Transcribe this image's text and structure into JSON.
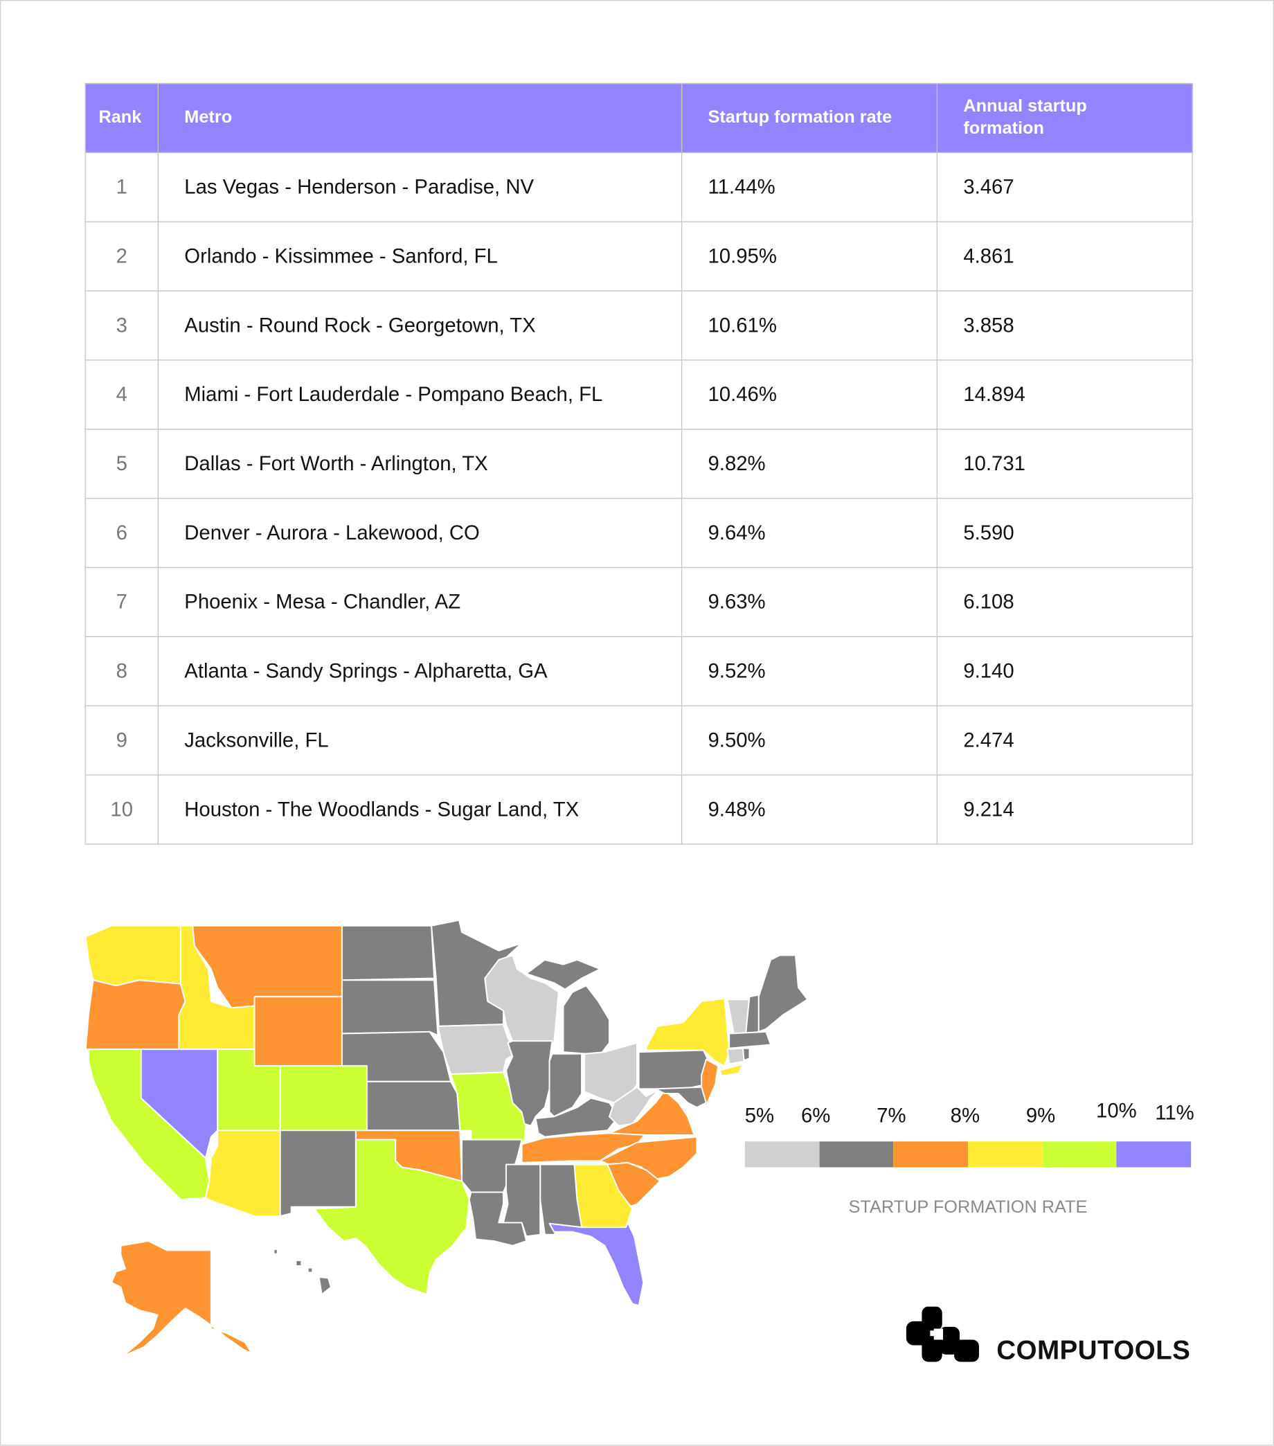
{
  "table": {
    "headers": [
      "Rank",
      "Metro",
      "Startup formation rate",
      "Annual startup formation"
    ],
    "rows": [
      {
        "rank": "1",
        "metro": "Las Vegas - Henderson - Paradise, NV",
        "rate": "11.44%",
        "annual": "3.467"
      },
      {
        "rank": "2",
        "metro": "Orlando - Kissimmee - Sanford, FL",
        "rate": "10.95%",
        "annual": "4.861"
      },
      {
        "rank": "3",
        "metro": "Austin - Round Rock - Georgetown, TX",
        "rate": "10.61%",
        "annual": "3.858"
      },
      {
        "rank": "4",
        "metro": "Miami - Fort Lauderdale - Pompano Beach, FL",
        "rate": "10.46%",
        "annual": "14.894"
      },
      {
        "rank": "5",
        "metro": "Dallas - Fort Worth - Arlington, TX",
        "rate": "9.82%",
        "annual": "10.731"
      },
      {
        "rank": "6",
        "metro": "Denver - Aurora - Lakewood, CO",
        "rate": "9.64%",
        "annual": "5.590"
      },
      {
        "rank": "7",
        "metro": "Phoenix - Mesa - Chandler, AZ",
        "rate": "9.63%",
        "annual": "6.108"
      },
      {
        "rank": "8",
        "metro": "Atlanta - Sandy Springs - Alpharetta, GA",
        "rate": "9.52%",
        "annual": "9.140"
      },
      {
        "rank": "9",
        "metro": "Jacksonville, FL",
        "rate": "9.50%",
        "annual": "2.474"
      },
      {
        "rank": "10",
        "metro": "Houston - The Woodlands - Sugar Land, TX",
        "rate": "9.48%",
        "annual": "9.214"
      }
    ]
  },
  "colors": {
    "header": "#9384ff",
    "border": "#c4c4c4"
  },
  "chart_data": {
    "type": "choropleth",
    "legend": {
      "title": "STARTUP FORMATION RATE",
      "tick_labels": [
        "5%",
        "6%",
        "7%",
        "8%",
        "9%",
        "10%",
        "11%"
      ],
      "bins": [
        {
          "range": [
            5,
            6
          ],
          "color": "#d0d0d0"
        },
        {
          "range": [
            6,
            7
          ],
          "color": "#808080"
        },
        {
          "range": [
            7,
            8
          ],
          "color": "#ff9433"
        },
        {
          "range": [
            8,
            9
          ],
          "color": "#ffeb33"
        },
        {
          "range": [
            9,
            10
          ],
          "color": "#ccff33"
        },
        {
          "range": [
            10,
            11
          ],
          "color": "#9384ff"
        }
      ]
    }
  },
  "brand": {
    "name": "COMPUTOOLS"
  }
}
